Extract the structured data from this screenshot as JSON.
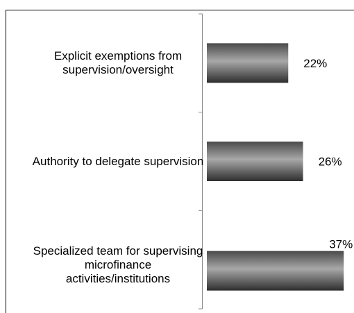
{
  "chart_data": {
    "type": "bar",
    "orientation": "horizontal",
    "categories": [
      "Explicit exemptions from supervision/oversight",
      "Authority to delegate supervision",
      "Specialized team for supervising microfinance activities/institutions"
    ],
    "values": [
      22,
      26,
      37
    ],
    "value_labels": [
      "22%",
      "26%",
      "37%"
    ],
    "color": "#6e6e6e"
  }
}
